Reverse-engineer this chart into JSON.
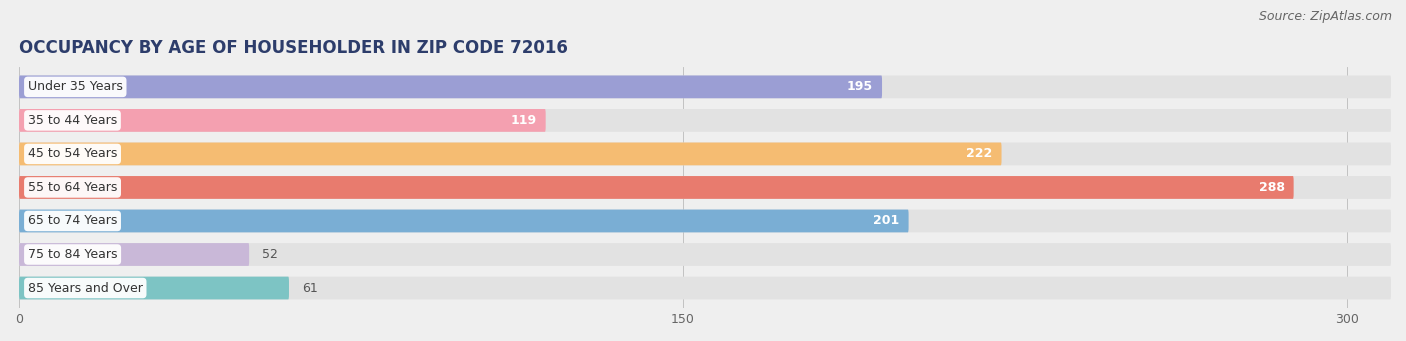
{
  "title": "OCCUPANCY BY AGE OF HOUSEHOLDER IN ZIP CODE 72016",
  "source": "Source: ZipAtlas.com",
  "categories": [
    "Under 35 Years",
    "35 to 44 Years",
    "45 to 54 Years",
    "55 to 64 Years",
    "65 to 74 Years",
    "75 to 84 Years",
    "85 Years and Over"
  ],
  "values": [
    195,
    119,
    222,
    288,
    201,
    52,
    61
  ],
  "bar_colors": [
    "#9b9ed4",
    "#f4a0b0",
    "#f5bc72",
    "#e87b6e",
    "#7aaed4",
    "#c9b8d8",
    "#7dc4c4"
  ],
  "xlim": [
    0,
    310
  ],
  "xticks": [
    0,
    150,
    300
  ],
  "title_fontsize": 12,
  "source_fontsize": 9,
  "label_fontsize": 9,
  "value_label_fontsize": 9,
  "background_color": "#efefef",
  "bar_background_color": "#e2e2e2"
}
